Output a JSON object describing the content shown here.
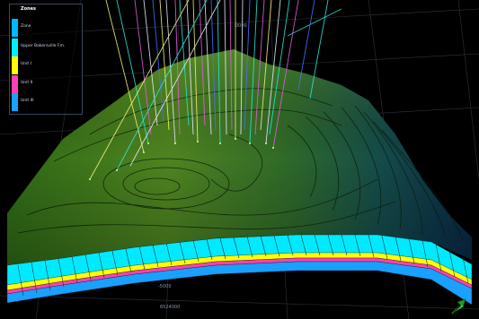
{
  "legend": {
    "title": "Zones",
    "items": [
      {
        "label": "Zone",
        "color": "#00b7ff"
      },
      {
        "label": "Upper Bakersville Fm.",
        "color": "#00f0ff"
      },
      {
        "label": "Unit I",
        "color": "#ffff00"
      },
      {
        "label": "Unit II",
        "color": "#ff40b0"
      },
      {
        "label": "Unit III",
        "color": "#1aa0ff"
      }
    ]
  },
  "axes": {
    "top_label": "0000",
    "bottom_left_label": "-5000",
    "bottom_label": "6524000"
  },
  "colors": {
    "background": "#000000",
    "surface_high": "#5e8f1e",
    "surface_low": "#0a3858",
    "contour": "#0a1a06",
    "wells_white": "#e8e8ff",
    "wells_cyan": "#2ae8d8",
    "wells_yellow": "#f2f27a",
    "wells_pink": "#e060d8",
    "wells_blue": "#4a70ff"
  },
  "navigation": {
    "icon": "green-arrow-navigation-icon"
  }
}
